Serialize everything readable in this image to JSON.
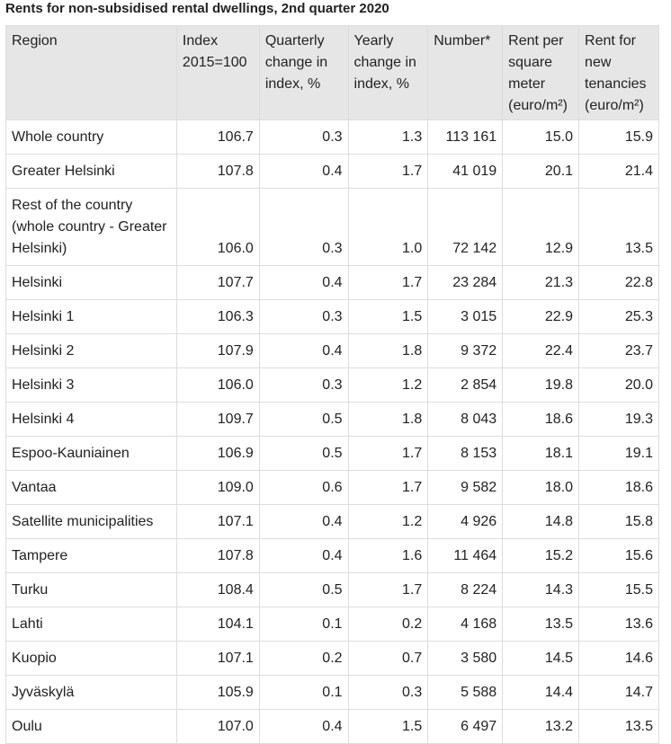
{
  "title": "Rents for non-subsidised rental dwellings, 2nd quarter 2020",
  "headers": [
    "Region",
    "Index 2015=100",
    "Quarterly change in index, %",
    "Yearly change in index, %",
    "Number*",
    "Rent per square meter (euro/m²)",
    "Rent for new tenancies (euro/m²)"
  ],
  "rows": [
    [
      "Whole country",
      "106.7",
      "0.3",
      "1.3",
      "113 161",
      "15.0",
      "15.9"
    ],
    [
      "Greater Helsinki",
      "107.8",
      "0.4",
      "1.7",
      "41 019",
      "20.1",
      "21.4"
    ],
    [
      "Rest of the country (whole country - Greater Helsinki)",
      "106.0",
      "0.3",
      "1.0",
      "72 142",
      "12.9",
      "13.5"
    ],
    [
      "Helsinki",
      "107.7",
      "0.4",
      "1.7",
      "23 284",
      "21.3",
      "22.8"
    ],
    [
      "Helsinki 1",
      "106.3",
      "0.3",
      "1.5",
      "3 015",
      "22.9",
      "25.3"
    ],
    [
      "Helsinki 2",
      "107.9",
      "0.4",
      "1.8",
      "9 372",
      "22.4",
      "23.7"
    ],
    [
      "Helsinki 3",
      "106.0",
      "0.3",
      "1.2",
      "2 854",
      "19.8",
      "20.0"
    ],
    [
      "Helsinki 4",
      "109.7",
      "0.5",
      "1.8",
      "8 043",
      "18.6",
      "19.3"
    ],
    [
      "Espoo-Kauniainen",
      "106.9",
      "0.5",
      "1.7",
      "8 153",
      "18.1",
      "19.1"
    ],
    [
      "Vantaa",
      "109.0",
      "0.6",
      "1.7",
      "9 582",
      "18.0",
      "18.6"
    ],
    [
      "Satellite municipalities",
      "107.1",
      "0.4",
      "1.2",
      "4 926",
      "14.8",
      "15.8"
    ],
    [
      "Tampere",
      "107.8",
      "0.4",
      "1.6",
      "11 464",
      "15.2",
      "15.6"
    ],
    [
      "Turku",
      "108.4",
      "0.5",
      "1.7",
      "8 224",
      "14.3",
      "15.5"
    ],
    [
      "Lahti",
      "104.1",
      "0.1",
      "0.2",
      "4 168",
      "13.5",
      "13.6"
    ],
    [
      "Kuopio",
      "107.1",
      "0.2",
      "0.7",
      "3 580",
      "14.5",
      "14.6"
    ],
    [
      "Jyväskylä",
      "105.9",
      "0.1",
      "0.3",
      "5 588",
      "14.4",
      "14.7"
    ],
    [
      "Oulu",
      "107.0",
      "0.4",
      "1.5",
      "6 497",
      "13.2",
      "13.5"
    ]
  ]
}
